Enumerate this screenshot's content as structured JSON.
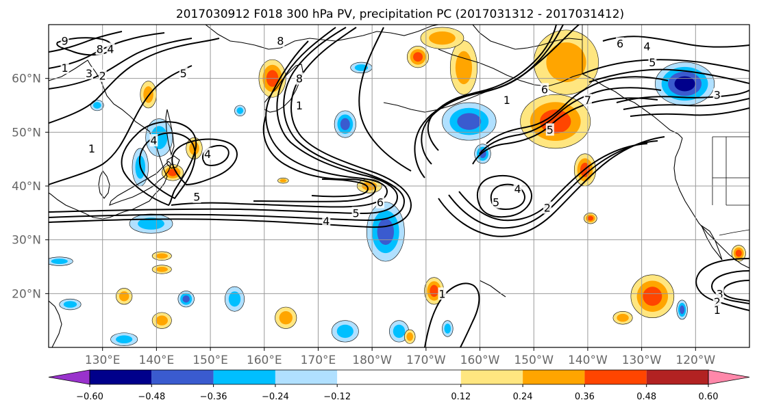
{
  "title": "2017030912 F018 300 hPa PV, precipitation PC (2017031312 - 2017031412)",
  "map": {
    "projection": "cylindrical",
    "lon_range": [
      120,
      250
    ],
    "lat_range": [
      10,
      70
    ],
    "grid": true,
    "lat_ticks": [
      {
        "lat": 60,
        "label": "60°N"
      },
      {
        "lat": 50,
        "label": "50°N"
      },
      {
        "lat": 40,
        "label": "40°N"
      },
      {
        "lat": 30,
        "label": "30°N"
      },
      {
        "lat": 20,
        "label": "20°N"
      }
    ],
    "lon_ticks": [
      {
        "lon": 130,
        "label": "130°E"
      },
      {
        "lon": 140,
        "label": "140°E"
      },
      {
        "lon": 150,
        "label": "150°E"
      },
      {
        "lon": 160,
        "label": "160°E"
      },
      {
        "lon": 170,
        "label": "170°E"
      },
      {
        "lon": 180,
        "label": "180°W"
      },
      {
        "lon": 190,
        "label": "170°W"
      },
      {
        "lon": 200,
        "label": "160°W"
      },
      {
        "lon": 210,
        "label": "150°W"
      },
      {
        "lon": 220,
        "label": "140°W"
      },
      {
        "lon": 230,
        "label": "130°W"
      },
      {
        "lon": 240,
        "label": "120°W"
      }
    ]
  },
  "colorbar": {
    "boundaries": [
      -0.72,
      -0.6,
      -0.48,
      -0.36,
      -0.24,
      -0.12,
      0.12,
      0.24,
      0.36,
      0.48,
      0.6,
      0.72
    ],
    "colors": [
      "#9932cc",
      "#00008b",
      "#3a5bcf",
      "#00bfff",
      "#b0e0ff",
      "#ffffff",
      "#ffe680",
      "#ffa500",
      "#ff4500",
      "#b22222",
      "#ff88aa"
    ],
    "tick_labels": [
      "−0.60",
      "−0.48",
      "−0.36",
      "−0.24",
      "−0.12",
      "0.12",
      "0.24",
      "0.36",
      "0.48",
      "0.60"
    ]
  },
  "pv_contour_labels": [
    {
      "text": "9",
      "lon": 123,
      "lat": 67
    },
    {
      "text": "8",
      "lon": 129.5,
      "lat": 65.5
    },
    {
      "text": "4",
      "lon": 131.5,
      "lat": 65.5
    },
    {
      "text": "1",
      "lon": 123,
      "lat": 62
    },
    {
      "text": "3",
      "lon": 127.5,
      "lat": 61
    },
    {
      "text": "2",
      "lon": 130,
      "lat": 60.5
    },
    {
      "text": "5",
      "lon": 145,
      "lat": 61
    },
    {
      "text": "8",
      "lon": 163,
      "lat": 67
    },
    {
      "text": "8",
      "lon": 166.5,
      "lat": 60
    },
    {
      "text": "1",
      "lon": 166.5,
      "lat": 55
    },
    {
      "text": "4",
      "lon": 149.5,
      "lat": 46
    },
    {
      "text": "5",
      "lon": 147.5,
      "lat": 38
    },
    {
      "text": "1",
      "lon": 128,
      "lat": 47
    },
    {
      "text": "4",
      "lon": 139.5,
      "lat": 48.5
    },
    {
      "text": "6",
      "lon": 181.5,
      "lat": 37
    },
    {
      "text": "5",
      "lon": 177,
      "lat": 35
    },
    {
      "text": "4",
      "lon": 171.5,
      "lat": 33.5
    },
    {
      "text": "4",
      "lon": 207,
      "lat": 39.5
    },
    {
      "text": "5",
      "lon": 203,
      "lat": 37
    },
    {
      "text": "2",
      "lon": 212.5,
      "lat": 36
    },
    {
      "text": "1",
      "lon": 205,
      "lat": 56
    },
    {
      "text": "6",
      "lon": 212,
      "lat": 58
    },
    {
      "text": "7",
      "lon": 220,
      "lat": 56
    },
    {
      "text": "5",
      "lon": 213,
      "lat": 50.5
    },
    {
      "text": "5",
      "lon": 232,
      "lat": 63
    },
    {
      "text": "6",
      "lon": 226,
      "lat": 66.5
    },
    {
      "text": "4",
      "lon": 231,
      "lat": 66
    },
    {
      "text": "3",
      "lon": 244,
      "lat": 57
    },
    {
      "text": "3",
      "lon": 244.5,
      "lat": 20
    },
    {
      "text": "2",
      "lon": 244,
      "lat": 18.5
    },
    {
      "text": "1",
      "lon": 244,
      "lat": 17
    },
    {
      "text": "1",
      "lon": 193,
      "lat": 20
    }
  ],
  "precip_pc_anomalies": [
    {
      "lon": 137,
      "lat": 43.5,
      "rx": 1.5,
      "ry": 3.5,
      "level": -0.24
    },
    {
      "lon": 129,
      "lat": 55,
      "rx": 1.2,
      "ry": 1,
      "level": -0.24
    },
    {
      "lon": 138.5,
      "lat": 57,
      "rx": 1.5,
      "ry": 2.5,
      "level": 0.24
    },
    {
      "lon": 140.5,
      "lat": 49,
      "rx": 2.5,
      "ry": 3.5,
      "level": -0.24
    },
    {
      "lon": 147,
      "lat": 47,
      "rx": 1.5,
      "ry": 2,
      "level": 0.24
    },
    {
      "lon": 161.5,
      "lat": 60,
      "rx": 2.5,
      "ry": 3.5,
      "level": 0.36
    },
    {
      "lon": 155.5,
      "lat": 54,
      "rx": 1,
      "ry": 1,
      "level": -0.24
    },
    {
      "lon": 143,
      "lat": 42.5,
      "rx": 2,
      "ry": 1.5,
      "level": 0.36
    },
    {
      "lon": 139,
      "lat": 33,
      "rx": 4,
      "ry": 1.8,
      "level": -0.24
    },
    {
      "lon": 141,
      "lat": 24.5,
      "rx": 1.8,
      "ry": 0.8,
      "level": 0.24
    },
    {
      "lon": 141,
      "lat": 27,
      "rx": 1.8,
      "ry": 0.8,
      "level": 0.24
    },
    {
      "lon": 122,
      "lat": 26,
      "rx": 2.5,
      "ry": 0.8,
      "level": -0.24
    },
    {
      "lon": 134,
      "lat": 19.5,
      "rx": 1.5,
      "ry": 1.5,
      "level": 0.24
    },
    {
      "lon": 145.5,
      "lat": 19,
      "rx": 1.5,
      "ry": 1.5,
      "level": -0.36
    },
    {
      "lon": 154.5,
      "lat": 19,
      "rx": 1.8,
      "ry": 2.3,
      "level": -0.24
    },
    {
      "lon": 141,
      "lat": 15,
      "rx": 1.8,
      "ry": 1.5,
      "level": 0.24
    },
    {
      "lon": 134,
      "lat": 11.5,
      "rx": 2.5,
      "ry": 1.2,
      "level": -0.24
    },
    {
      "lon": 124,
      "lat": 18,
      "rx": 2,
      "ry": 1,
      "level": -0.24
    },
    {
      "lon": 164,
      "lat": 15.5,
      "rx": 2,
      "ry": 2,
      "level": 0.24
    },
    {
      "lon": 175,
      "lat": 13,
      "rx": 2.5,
      "ry": 2,
      "level": -0.24
    },
    {
      "lon": 185,
      "lat": 13,
      "rx": 1.8,
      "ry": 2,
      "level": -0.24
    },
    {
      "lon": 163.5,
      "lat": 41,
      "rx": 1,
      "ry": 0.5,
      "level": 0.24
    },
    {
      "lon": 182.5,
      "lat": 31.5,
      "rx": 3.5,
      "ry": 5.5,
      "level": -0.36
    },
    {
      "lon": 179.5,
      "lat": 40,
      "rx": 2.3,
      "ry": 1.3,
      "level": 0.24
    },
    {
      "lon": 175,
      "lat": 51.5,
      "rx": 2,
      "ry": 2.5,
      "level": -0.36
    },
    {
      "lon": 198,
      "lat": 52,
      "rx": 5,
      "ry": 3.5,
      "level": -0.36
    },
    {
      "lon": 200.5,
      "lat": 46,
      "rx": 1.5,
      "ry": 1.8,
      "level": -0.36
    },
    {
      "lon": 214,
      "lat": 52,
      "rx": 6.5,
      "ry": 5,
      "level": 0.36
    },
    {
      "lon": 219.5,
      "lat": 43,
      "rx": 2,
      "ry": 3,
      "level": 0.36
    },
    {
      "lon": 220.5,
      "lat": 34,
      "rx": 1.2,
      "ry": 1,
      "level": 0.36
    },
    {
      "lon": 216,
      "lat": 63,
      "rx": 6,
      "ry": 6,
      "level": 0.24
    },
    {
      "lon": 197,
      "lat": 62,
      "rx": 2.5,
      "ry": 5,
      "level": 0.24
    },
    {
      "lon": 178,
      "lat": 62,
      "rx": 2,
      "ry": 1,
      "level": -0.24
    },
    {
      "lon": 193,
      "lat": 67.5,
      "rx": 4,
      "ry": 2,
      "level": 0.24
    },
    {
      "lon": 188.5,
      "lat": 64,
      "rx": 2,
      "ry": 2,
      "level": 0.36
    },
    {
      "lon": 238,
      "lat": 59,
      "rx": 5.5,
      "ry": 4,
      "level": -0.48
    },
    {
      "lon": 191.5,
      "lat": 20.5,
      "rx": 1.8,
      "ry": 2.5,
      "level": 0.36
    },
    {
      "lon": 232,
      "lat": 19.5,
      "rx": 4,
      "ry": 4,
      "level": 0.36
    },
    {
      "lon": 226.5,
      "lat": 15.5,
      "rx": 1.8,
      "ry": 1.2,
      "level": 0.24
    },
    {
      "lon": 237.5,
      "lat": 17,
      "rx": 1,
      "ry": 1.8,
      "level": -0.36
    },
    {
      "lon": 248,
      "lat": 27.5,
      "rx": 1.3,
      "ry": 1.5,
      "level": 0.36
    },
    {
      "lon": 194,
      "lat": 13.5,
      "rx": 1,
      "ry": 1.5,
      "level": -0.24
    },
    {
      "lon": 187,
      "lat": 12,
      "rx": 1,
      "ry": 1.3,
      "level": 0.24
    }
  ]
}
